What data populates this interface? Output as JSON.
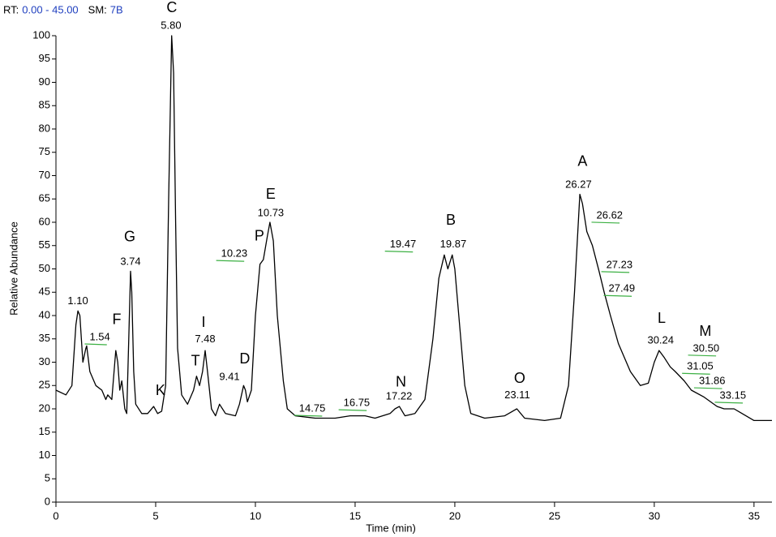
{
  "chart_data": {
    "type": "line",
    "header": [
      {
        "text": "RT:",
        "color": "#000000"
      },
      {
        "text": "0.00 - 45.00",
        "color": "#1f3fbf"
      },
      {
        "text": "SM:",
        "color": "#000000"
      },
      {
        "text": "7B",
        "color": "#1f3fbf"
      }
    ],
    "xlabel": "Time (min)",
    "ylabel": "Relative Abundance",
    "color": "#000000",
    "xlim": [
      0,
      35.9
    ],
    "ylim": [
      0,
      100
    ],
    "xticks": [
      0,
      5,
      10,
      15,
      20,
      25,
      30,
      35
    ],
    "yticks": [
      0,
      5,
      10,
      15,
      20,
      25,
      30,
      35,
      40,
      45,
      50,
      55,
      60,
      65,
      70,
      75,
      80,
      85,
      90,
      95,
      100
    ],
    "x": [
      0,
      0.5,
      0.8,
      1.0,
      1.1,
      1.2,
      1.35,
      1.5,
      1.54,
      1.7,
      2.0,
      2.3,
      2.5,
      2.6,
      2.8,
      2.95,
      3.0,
      3.1,
      3.2,
      3.3,
      3.45,
      3.55,
      3.65,
      3.74,
      3.8,
      3.9,
      4.0,
      4.3,
      4.6,
      4.9,
      5.1,
      5.3,
      5.5,
      5.65,
      5.8,
      5.9,
      6.0,
      6.1,
      6.3,
      6.6,
      6.9,
      7.05,
      7.2,
      7.35,
      7.48,
      7.6,
      7.8,
      8.0,
      8.2,
      8.5,
      9.0,
      9.2,
      9.41,
      9.5,
      9.6,
      9.8,
      10.0,
      10.23,
      10.4,
      10.6,
      10.73,
      10.9,
      11.1,
      11.4,
      11.6,
      12.0,
      13.0,
      14.0,
      14.75,
      15.5,
      16.0,
      16.75,
      17.0,
      17.22,
      17.5,
      18.0,
      18.5,
      18.9,
      19.2,
      19.47,
      19.65,
      19.87,
      20.0,
      20.2,
      20.5,
      20.8,
      21.5,
      22.5,
      23.11,
      23.5,
      24.5,
      25.3,
      25.7,
      26.0,
      26.27,
      26.4,
      26.62,
      26.9,
      27.23,
      27.49,
      27.8,
      28.2,
      28.8,
      29.3,
      29.7,
      30.0,
      30.24,
      30.5,
      30.8,
      31.05,
      31.5,
      31.86,
      32.5,
      33.15,
      33.5,
      34.0,
      35.0,
      35.9
    ],
    "values": [
      24,
      23,
      25,
      38,
      41,
      40,
      30,
      33,
      33.5,
      28,
      25,
      24,
      22,
      23,
      22,
      30,
      32.5,
      30,
      24,
      26,
      20,
      19,
      35,
      49.5,
      45,
      28,
      21,
      19,
      19,
      20.5,
      19,
      19.5,
      25,
      65,
      100,
      92,
      60,
      33,
      23,
      21,
      24,
      27,
      25,
      28,
      32.5,
      28,
      20,
      18.5,
      21,
      19,
      18.5,
      21,
      25,
      24,
      21.5,
      24,
      40,
      51,
      52,
      57,
      60,
      56,
      40,
      26,
      20,
      18.5,
      18,
      18,
      18.5,
      18.5,
      18,
      19,
      20,
      20.5,
      18.5,
      19,
      22,
      35,
      48,
      53,
      50,
      53,
      50,
      40,
      25,
      19,
      18,
      18.5,
      20,
      18,
      17.5,
      18,
      25,
      45,
      66,
      64,
      58,
      55,
      49.5,
      45,
      40,
      34,
      28,
      25,
      25.5,
      30,
      32.5,
      31,
      29,
      28,
      26,
      24,
      22.5,
      20.5,
      20,
      20,
      17.5,
      17.5
    ],
    "annotations": [
      {
        "text": "1.10",
        "x": 1.1,
        "y": 43.0
      },
      {
        "text": "1.54",
        "x": 2.2,
        "y": 35.3
      },
      {
        "text": "3.74",
        "x": 3.74,
        "y": 51.5
      },
      {
        "text": "5.80",
        "x": 5.77,
        "y": 102.1
      },
      {
        "text": "7.48",
        "x": 7.48,
        "y": 34.9
      },
      {
        "text": "9.41",
        "x": 8.7,
        "y": 26.8
      },
      {
        "text": "10.23",
        "x": 8.94,
        "y": 53.2
      },
      {
        "text": "10.73",
        "x": 10.77,
        "y": 61.9
      },
      {
        "text": "14.75",
        "x": 12.85,
        "y": 20.0
      },
      {
        "text": "16.75",
        "x": 15.08,
        "y": 21.2
      },
      {
        "text": "17.22",
        "x": 17.2,
        "y": 22.6
      },
      {
        "text": "19.47",
        "x": 17.4,
        "y": 55.2
      },
      {
        "text": "19.87",
        "x": 19.92,
        "y": 55.2
      },
      {
        "text": "23.11",
        "x": 23.13,
        "y": 22.9
      },
      {
        "text": "26.27",
        "x": 26.2,
        "y": 68.0
      },
      {
        "text": "26.62",
        "x": 27.76,
        "y": 61.4
      },
      {
        "text": "27.23",
        "x": 28.25,
        "y": 50.8
      },
      {
        "text": "27.49",
        "x": 28.37,
        "y": 45.7
      },
      {
        "text": "30.24",
        "x": 30.32,
        "y": 34.6
      },
      {
        "text": "30.50",
        "x": 32.6,
        "y": 32.9
      },
      {
        "text": "31.05",
        "x": 32.3,
        "y": 29.0
      },
      {
        "text": "31.86",
        "x": 32.9,
        "y": 25.9
      },
      {
        "text": "33.15",
        "x": 33.94,
        "y": 22.8
      }
    ],
    "peak_letters": [
      {
        "text": "C",
        "x": 5.81,
        "y": 105.9
      },
      {
        "text": "G",
        "x": 3.7,
        "y": 56.7
      },
      {
        "text": "F",
        "x": 3.05,
        "y": 39.0
      },
      {
        "text": "K",
        "x": 5.24,
        "y": 23.8
      },
      {
        "text": "I",
        "x": 7.4,
        "y": 38.4
      },
      {
        "text": "T",
        "x": 7.0,
        "y": 30.1
      },
      {
        "text": "D",
        "x": 9.47,
        "y": 30.6
      },
      {
        "text": "P",
        "x": 10.2,
        "y": 56.9
      },
      {
        "text": "E",
        "x": 10.77,
        "y": 65.9
      },
      {
        "text": "N",
        "x": 17.3,
        "y": 25.6
      },
      {
        "text": "B",
        "x": 19.8,
        "y": 60.3
      },
      {
        "text": "O",
        "x": 23.25,
        "y": 26.4
      },
      {
        "text": "A",
        "x": 26.4,
        "y": 72.9
      },
      {
        "text": "L",
        "x": 30.37,
        "y": 39.3
      },
      {
        "text": "M",
        "x": 32.56,
        "y": 36.5
      }
    ]
  }
}
